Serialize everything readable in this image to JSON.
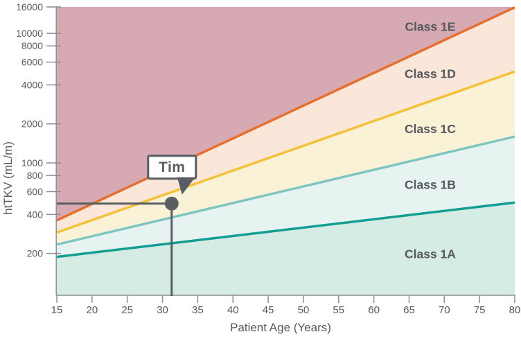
{
  "chart_data": {
    "type": "area",
    "title": "",
    "description": "htTKV classification chart (Class 1A-1E bands) on log y-scale vs patient age, with patient marker",
    "x_axis": {
      "label": "Patient Age (Years)",
      "range": [
        15,
        80
      ],
      "ticks": [
        15,
        20,
        25,
        30,
        35,
        40,
        45,
        50,
        55,
        60,
        65,
        70,
        75,
        80
      ]
    },
    "y_axis": {
      "label": "htTKV (mL/m)",
      "scale": "log",
      "range": [
        95,
        16000
      ],
      "ticks": [
        200,
        400,
        600,
        800,
        1000,
        2000,
        4000,
        6000,
        8000,
        10000,
        16000
      ]
    },
    "boundaries": [
      {
        "id": "boundary-1d-1e",
        "color": "#E66F2D",
        "value_at_age_15": 360,
        "value_at_age_80": 15870
      },
      {
        "id": "boundary-1c-1d",
        "color": "#F4C13B",
        "value_at_age_15": 290,
        "value_at_age_80": 5075
      },
      {
        "id": "boundary-1b-1c",
        "color": "#7FC5C1",
        "value_at_age_15": 234,
        "value_at_age_80": 1596
      },
      {
        "id": "boundary-1a-1b",
        "color": "#149E93",
        "value_at_age_15": 188,
        "value_at_age_80": 494
      }
    ],
    "regions": [
      {
        "name": "Class 1E",
        "fill": "#D7A9B2"
      },
      {
        "name": "Class 1D",
        "fill": "#FBE7DA"
      },
      {
        "name": "Class 1C",
        "fill": "#FAF2D6"
      },
      {
        "name": "Class 1B",
        "fill": "#E7F3F1"
      },
      {
        "name": "Class 1A",
        "fill": "#D5ECE4"
      }
    ],
    "region_label_age": 68,
    "marker": {
      "label": "Tim",
      "age": 31.3,
      "httkv": 485,
      "color": "#595E62"
    },
    "colors": {
      "axis": "#8A8E91",
      "text": "#55585C",
      "label_text": "#55585C",
      "callout_fill": "#FFFFFF"
    },
    "grid": "off",
    "legend": "region labels inside bands, right side"
  }
}
